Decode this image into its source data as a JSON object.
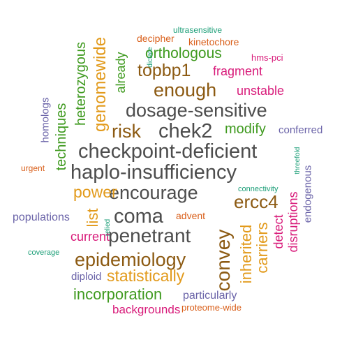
{
  "words": [
    {
      "id": "checkpoint-deficient",
      "text": "checkpoint-deficient",
      "color": "#4d4d4d"
    },
    {
      "id": "haplo-insufficiency",
      "text": "haplo-insufficiency",
      "color": "#4d4d4d"
    },
    {
      "id": "dosage-sensitive",
      "text": "dosage-sensitive",
      "color": "#4d4d4d"
    },
    {
      "id": "encourage",
      "text": "encourage",
      "color": "#4d4d4d"
    },
    {
      "id": "penetrant",
      "text": "penetrant",
      "color": "#4d4d4d"
    },
    {
      "id": "chek2",
      "text": "chek2",
      "color": "#4d4d4d"
    },
    {
      "id": "coma",
      "text": "coma",
      "color": "#4d4d4d"
    },
    {
      "id": "epidemiology",
      "text": "epidemiology",
      "color": "#8c5a12"
    },
    {
      "id": "enough",
      "text": "enough",
      "color": "#8c5a12"
    },
    {
      "id": "topbp1",
      "text": "topbp1",
      "color": "#8c5a12"
    },
    {
      "id": "risk",
      "text": "risk",
      "color": "#8c5a12"
    },
    {
      "id": "ercc4",
      "text": "ercc4",
      "color": "#8c5a12"
    },
    {
      "id": "convey",
      "text": "convey",
      "color": "#8c5a12"
    },
    {
      "id": "inherited",
      "text": "inherited",
      "color": "#e29a1b"
    },
    {
      "id": "carriers",
      "text": "carriers",
      "color": "#e29a1b"
    },
    {
      "id": "power",
      "text": "power",
      "color": "#e29a1b"
    },
    {
      "id": "list",
      "text": "list",
      "color": "#e29a1b"
    },
    {
      "id": "statistically",
      "text": "statistically",
      "color": "#e29a1b"
    },
    {
      "id": "genomewide",
      "text": "genomewide",
      "color": "#e29a1b"
    },
    {
      "id": "incorporation",
      "text": "incorporation",
      "color": "#3f9a1f"
    },
    {
      "id": "orthologous",
      "text": "orthologous",
      "color": "#3f9a1f"
    },
    {
      "id": "modify",
      "text": "modify",
      "color": "#3f9a1f"
    },
    {
      "id": "heterozygous",
      "text": "heterozygous",
      "color": "#3f9a1f"
    },
    {
      "id": "techniques",
      "text": "techniques",
      "color": "#3f9a1f"
    },
    {
      "id": "already",
      "text": "already",
      "color": "#3f9a1f"
    },
    {
      "id": "current",
      "text": "current",
      "color": "#d81b7a"
    },
    {
      "id": "fragment",
      "text": "fragment",
      "color": "#d81b7a"
    },
    {
      "id": "unstable",
      "text": "unstable",
      "color": "#d81b7a"
    },
    {
      "id": "detect",
      "text": "detect",
      "color": "#d81b7a"
    },
    {
      "id": "disruptions",
      "text": "disruptions",
      "color": "#d81b7a"
    },
    {
      "id": "backgrounds",
      "text": "backgrounds",
      "color": "#d81b7a"
    },
    {
      "id": "hms-pci",
      "text": "hms-pci",
      "color": "#d81b7a"
    },
    {
      "id": "populations",
      "text": "populations",
      "color": "#6a63a8"
    },
    {
      "id": "particularly",
      "text": "particularly",
      "color": "#6a63a8"
    },
    {
      "id": "conferred",
      "text": "conferred",
      "color": "#6a63a8"
    },
    {
      "id": "diploid",
      "text": "diploid",
      "color": "#6a63a8"
    },
    {
      "id": "homologs",
      "text": "homologs",
      "color": "#6a63a8"
    },
    {
      "id": "endogenous",
      "text": "endogenous",
      "color": "#6a63a8"
    },
    {
      "id": "decipher",
      "text": "decipher",
      "color": "#d95f1a"
    },
    {
      "id": "kinetochore",
      "text": "kinetochore",
      "color": "#d95f1a"
    },
    {
      "id": "advent",
      "text": "advent",
      "color": "#d95f1a"
    },
    {
      "id": "urgent",
      "text": "urgent",
      "color": "#d95f1a"
    },
    {
      "id": "proteome-wide",
      "text": "proteome-wide",
      "color": "#d95f1a"
    },
    {
      "id": "ultrasensitive",
      "text": "ultrasensitive",
      "color": "#1b9e77"
    },
    {
      "id": "connectivity",
      "text": "connectivity",
      "color": "#1b9e77"
    },
    {
      "id": "coverage",
      "text": "coverage",
      "color": "#1b9e77"
    },
    {
      "id": "threefold",
      "text": "threefold",
      "color": "#1b9e77"
    },
    {
      "id": "dictate",
      "text": "dictate",
      "color": "#1b9e77"
    },
    {
      "id": "relied",
      "text": "relied",
      "color": "#1b9e77"
    }
  ]
}
